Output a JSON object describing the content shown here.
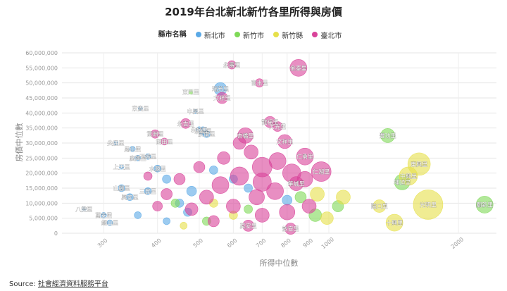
{
  "chart_data": {
    "type": "scatter",
    "title": "2019年台北新北新竹各里所得與房價",
    "xlabel": "所得中位數",
    "ylabel": "房價中位數",
    "x_scale": "log",
    "xlim": [
      240,
      2450
    ],
    "ylim": [
      0,
      60000000
    ],
    "x_ticks": [
      300,
      400,
      500,
      600,
      700,
      800,
      900,
      1000,
      2000
    ],
    "x_tick_labels": [
      "300",
      "400",
      "500",
      "600",
      "700",
      "800",
      "900",
      "1000",
      "2000"
    ],
    "y_ticks": [
      0,
      5000000,
      10000000,
      15000000,
      20000000,
      25000000,
      30000000,
      35000000,
      40000000,
      45000000,
      50000000,
      55000000,
      60000000
    ],
    "y_tick_labels": [
      "0",
      "5,000,000",
      "10,000,000",
      "15,000,000",
      "20,000,000",
      "25,000,000",
      "30,000,000",
      "35,000,000",
      "40,000,000",
      "45,000,000",
      "50,000,000",
      "55,000,000",
      "60,000,000"
    ],
    "grid": true,
    "legend_title": "縣市名稱",
    "legend_position": "top-center",
    "series": [
      {
        "name": "新北市",
        "color": "#5aa9e6",
        "points": [
          {
            "label": "瑞芳里",
            "x": 560,
            "y": 48000000,
            "r": 9
          },
          {
            "label": "中興里",
            "x": 490,
            "y": 40500000,
            "r": 3
          },
          {
            "label": "東貴里",
            "x": 365,
            "y": 41500000,
            "r": 3
          },
          {
            "label": "永和里",
            "x": 510,
            "y": 34000000,
            "r": 6
          },
          {
            "label": "永城里",
            "x": 500,
            "y": 34500000,
            "r": 4
          },
          {
            "label": "崇南里",
            "x": 520,
            "y": 33000000,
            "r": 5
          },
          {
            "label": "尖鹿里",
            "x": 320,
            "y": 30000000,
            "r": 3
          },
          {
            "label": "馬山里",
            "x": 350,
            "y": 28000000,
            "r": 4
          },
          {
            "label": "廣興里",
            "x": 360,
            "y": 25000000,
            "r": 4
          },
          {
            "label": "上天里",
            "x": 330,
            "y": 22000000,
            "r": 3
          },
          {
            "label": "水源里",
            "x": 400,
            "y": 21500000,
            "r": 5
          },
          {
            "label": "玉城里",
            "x": 380,
            "y": 25500000,
            "r": 4
          },
          {
            "label": "八雙里",
            "x": 270,
            "y": 8000000,
            "r": 3
          },
          {
            "label": "萬安里",
            "x": 300,
            "y": 6000000,
            "r": 4
          },
          {
            "label": "銅山里",
            "x": 310,
            "y": 3500000,
            "r": 4
          },
          {
            "label": "山腳里",
            "x": 330,
            "y": 15000000,
            "r": 5
          },
          {
            "label": "興安里",
            "x": 345,
            "y": 12000000,
            "r": 5
          },
          {
            "label": "三民里",
            "x": 380,
            "y": 14000000,
            "r": 5
          },
          {
            "label": "",
            "x": 420,
            "y": 18000000,
            "r": 6
          },
          {
            "label": "",
            "x": 450,
            "y": 10000000,
            "r": 6
          },
          {
            "label": "",
            "x": 480,
            "y": 14000000,
            "r": 7
          },
          {
            "label": "",
            "x": 540,
            "y": 21000000,
            "r": 6
          },
          {
            "label": "",
            "x": 600,
            "y": 18000000,
            "r": 6
          },
          {
            "label": "",
            "x": 650,
            "y": 15000000,
            "r": 6
          },
          {
            "label": "",
            "x": 800,
            "y": 11000000,
            "r": 7
          },
          {
            "label": "",
            "x": 360,
            "y": 6000000,
            "r": 5
          },
          {
            "label": "",
            "x": 420,
            "y": 4000000,
            "r": 5
          },
          {
            "label": "",
            "x": 470,
            "y": 7000000,
            "r": 6
          }
        ]
      },
      {
        "name": "新竹市",
        "color": "#7ed957",
        "points": [
          {
            "label": "東門里",
            "x": 478,
            "y": 47000000,
            "r": 3
          },
          {
            "label": "豐功里",
            "x": 1370,
            "y": 32500000,
            "r": 10
          },
          {
            "label": "埔頂里",
            "x": 1480,
            "y": 17000000,
            "r": 11
          },
          {
            "label": "關新里",
            "x": 2300,
            "y": 9500000,
            "r": 12
          },
          {
            "label": "",
            "x": 1050,
            "y": 9000000,
            "r": 8
          },
          {
            "label": "",
            "x": 930,
            "y": 6000000,
            "r": 9
          },
          {
            "label": "",
            "x": 860,
            "y": 12000000,
            "r": 8
          },
          {
            "label": "",
            "x": 650,
            "y": 8000000,
            "r": 6
          },
          {
            "label": "",
            "x": 520,
            "y": 4000000,
            "r": 6
          },
          {
            "label": "",
            "x": 440,
            "y": 10000000,
            "r": 6
          }
        ]
      },
      {
        "name": "新竹縣",
        "color": "#e6e04a",
        "points": [
          {
            "label": "東興里",
            "x": 1620,
            "y": 23000000,
            "r": 16
          },
          {
            "label": "中興里",
            "x": 1530,
            "y": 19000000,
            "r": 13
          },
          {
            "label": "光明里",
            "x": 1700,
            "y": 9500000,
            "r": 21
          },
          {
            "label": "十興里",
            "x": 1420,
            "y": 3500000,
            "r": 12
          },
          {
            "label": "隘口里",
            "x": 1310,
            "y": 9000000,
            "r": 9
          },
          {
            "label": "",
            "x": 1080,
            "y": 12000000,
            "r": 10
          },
          {
            "label": "",
            "x": 990,
            "y": 5000000,
            "r": 9
          },
          {
            "label": "",
            "x": 940,
            "y": 13000000,
            "r": 10
          },
          {
            "label": "",
            "x": 540,
            "y": 10000000,
            "r": 6
          },
          {
            "label": "",
            "x": 600,
            "y": 6000000,
            "r": 6
          },
          {
            "label": "",
            "x": 460,
            "y": 2500000,
            "r": 5
          }
        ]
      },
      {
        "name": "臺北市",
        "color": "#d9439a",
        "points": [
          {
            "label": "金泰里",
            "x": 850,
            "y": 55000000,
            "r": 12
          },
          {
            "label": "永壽里",
            "x": 595,
            "y": 56000000,
            "r": 6
          },
          {
            "label": "富水里",
            "x": 690,
            "y": 50000000,
            "r": 6
          },
          {
            "label": "文祥里",
            "x": 565,
            "y": 45000000,
            "r": 8
          },
          {
            "label": "龍福里",
            "x": 730,
            "y": 37000000,
            "r": 8
          },
          {
            "label": "大光里",
            "x": 760,
            "y": 35500000,
            "r": 7
          },
          {
            "label": "杏橋里",
            "x": 640,
            "y": 32500000,
            "r": 11
          },
          {
            "label": "文祥里",
            "x": 790,
            "y": 30500000,
            "r": 10
          },
          {
            "label": "富洲里",
            "x": 395,
            "y": 33000000,
            "r": 6
          },
          {
            "label": "湖田里",
            "x": 415,
            "y": 30500000,
            "r": 5
          },
          {
            "label": "永吉里",
            "x": 465,
            "y": 36500000,
            "r": 7
          },
          {
            "label": "仁勇里",
            "x": 880,
            "y": 25500000,
            "r": 12
          },
          {
            "label": "仁湖里",
            "x": 960,
            "y": 20500000,
            "r": 14
          },
          {
            "label": "華城里",
            "x": 840,
            "y": 16500000,
            "r": 10
          },
          {
            "label": "敦安里",
            "x": 815,
            "y": 1500000,
            "r": 8
          },
          {
            "label": "莫安里",
            "x": 650,
            "y": 2500000,
            "r": 8
          },
          {
            "label": "",
            "x": 700,
            "y": 22000000,
            "r": 14
          },
          {
            "label": "",
            "x": 620,
            "y": 19000000,
            "r": 13
          },
          {
            "label": "",
            "x": 560,
            "y": 16000000,
            "r": 12
          },
          {
            "label": "",
            "x": 750,
            "y": 14000000,
            "r": 12
          },
          {
            "label": "",
            "x": 680,
            "y": 12000000,
            "r": 11
          },
          {
            "label": "",
            "x": 520,
            "y": 12000000,
            "r": 10
          },
          {
            "label": "",
            "x": 600,
            "y": 9000000,
            "r": 10
          },
          {
            "label": "",
            "x": 480,
            "y": 8000000,
            "r": 9
          },
          {
            "label": "",
            "x": 700,
            "y": 6000000,
            "r": 10
          },
          {
            "label": "",
            "x": 800,
            "y": 7000000,
            "r": 11
          },
          {
            "label": "",
            "x": 900,
            "y": 9000000,
            "r": 10
          },
          {
            "label": "",
            "x": 820,
            "y": 20000000,
            "r": 13
          },
          {
            "label": "",
            "x": 660,
            "y": 27000000,
            "r": 10
          },
          {
            "label": "",
            "x": 570,
            "y": 25000000,
            "r": 9
          },
          {
            "label": "",
            "x": 450,
            "y": 18000000,
            "r": 8
          },
          {
            "label": "",
            "x": 420,
            "y": 13000000,
            "r": 8
          },
          {
            "label": "",
            "x": 400,
            "y": 9000000,
            "r": 7
          },
          {
            "label": "",
            "x": 540,
            "y": 4000000,
            "r": 8
          },
          {
            "label": "",
            "x": 760,
            "y": 24000000,
            "r": 12
          },
          {
            "label": "",
            "x": 880,
            "y": 18000000,
            "r": 11
          },
          {
            "label": "",
            "x": 620,
            "y": 30000000,
            "r": 9
          },
          {
            "label": "",
            "x": 700,
            "y": 17000000,
            "r": 13
          },
          {
            "label": "",
            "x": 500,
            "y": 22000000,
            "r": 8
          },
          {
            "label": "",
            "x": 380,
            "y": 19000000,
            "r": 6
          }
        ]
      }
    ]
  },
  "source": {
    "prefix": "Source: ",
    "link_text": "社會經濟資料服務平台"
  }
}
